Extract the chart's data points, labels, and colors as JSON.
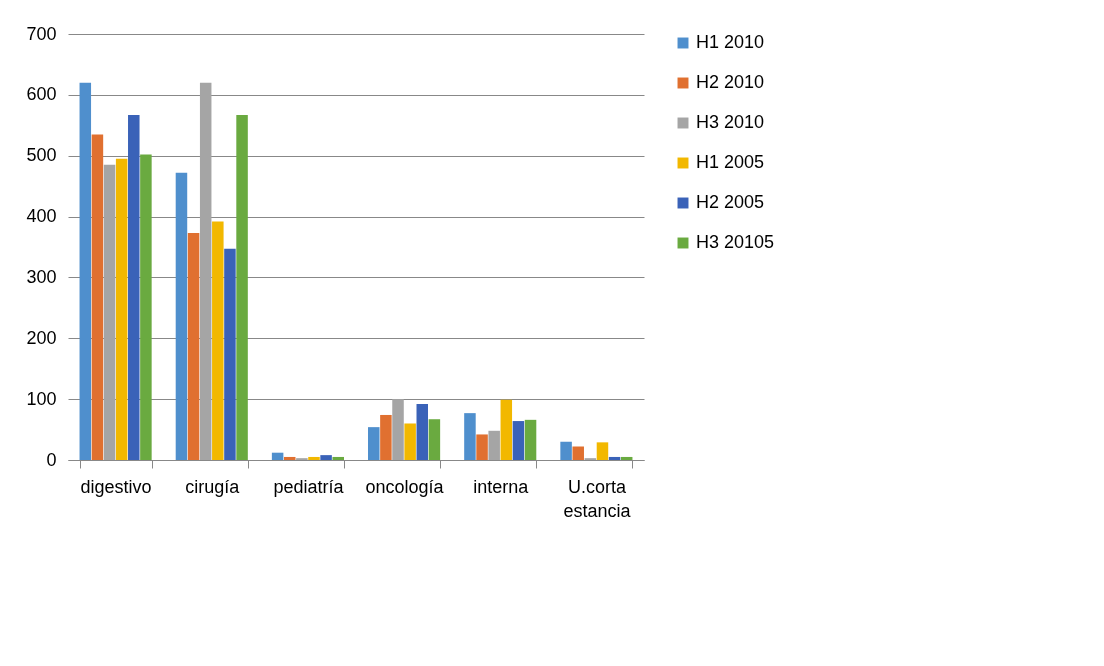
{
  "chart_data": {
    "type": "bar",
    "categories": [
      "digestivo",
      "cirugía",
      "pediatría",
      "oncología",
      "interna",
      "U.corta estancia"
    ],
    "series": [
      {
        "name": "H1 2010",
        "color": "#4f8fcd",
        "values": [
          620,
          472,
          12,
          54,
          77,
          30
        ]
      },
      {
        "name": "H2 2010",
        "color": "#e07030",
        "values": [
          535,
          373,
          5,
          74,
          42,
          22
        ]
      },
      {
        "name": "H3 2010",
        "color": "#a5a5a5",
        "values": [
          485,
          620,
          3,
          100,
          48,
          3
        ]
      },
      {
        "name": "H1 2005",
        "color": "#f2b800",
        "values": [
          495,
          392,
          5,
          60,
          99,
          29
        ]
      },
      {
        "name": "H2 2005",
        "color": "#3a62b8",
        "values": [
          567,
          347,
          8,
          92,
          64,
          5
        ]
      },
      {
        "name": "H3 20105",
        "color": "#6aaa40",
        "values": [
          502,
          567,
          5,
          67,
          66,
          5
        ]
      }
    ],
    "ylim": [
      0,
      700
    ],
    "yticks": [
      0,
      100,
      200,
      300,
      400,
      500,
      600,
      700
    ],
    "grid": "y",
    "legend": "right"
  }
}
